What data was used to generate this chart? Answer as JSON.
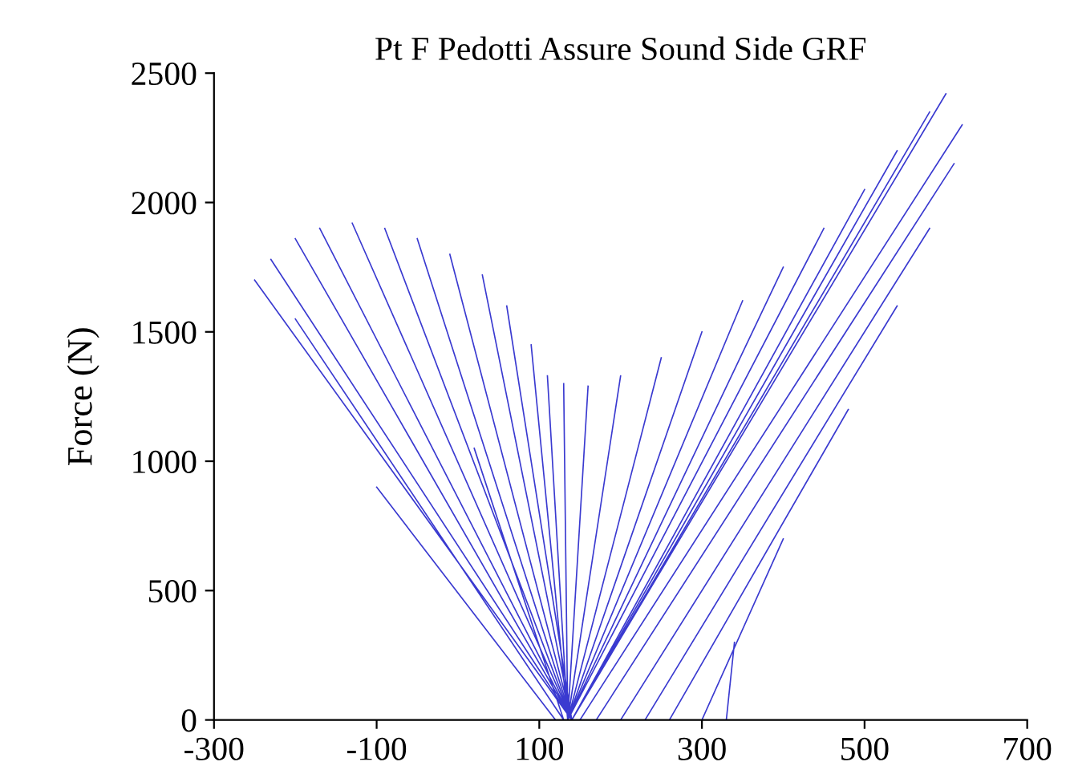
{
  "chart_data": {
    "type": "line",
    "title": "Pt F Pedotti Assure Sound Side GRF",
    "ylabel": "Force (N)",
    "xlim": [
      -300,
      700
    ],
    "ylim": [
      0,
      2500
    ],
    "xticks": [
      -300,
      -100,
      100,
      300,
      500,
      700
    ],
    "yticks": [
      0,
      500,
      1000,
      1500,
      2000,
      2500
    ],
    "grid": false,
    "legend": false,
    "marker": "none",
    "line_style": "solid",
    "series": [
      {
        "color": "#3a3ad0",
        "x": [
          140,
          -250,
          null,
          140,
          -230,
          null,
          140,
          -200,
          null,
          140,
          -170,
          null,
          140,
          -130,
          null,
          140,
          -90,
          null,
          140,
          -50,
          null,
          140,
          -10,
          null,
          140,
          30,
          null,
          140,
          60,
          null,
          135,
          90,
          null,
          135,
          110,
          null,
          135,
          130,
          null,
          135,
          160,
          null,
          135,
          200,
          null,
          135,
          250,
          null,
          135,
          300,
          null,
          135,
          350,
          null,
          135,
          400,
          null,
          135,
          450,
          null,
          140,
          500,
          null,
          140,
          540,
          null,
          140,
          580,
          null,
          140,
          600,
          null,
          150,
          620,
          null,
          170,
          610,
          null,
          200,
          580,
          null,
          230,
          540,
          null,
          260,
          480,
          null,
          300,
          400,
          null,
          330,
          340,
          null,
          130,
          -200,
          null,
          120,
          -100,
          null,
          130,
          20
        ],
        "values": [
          0,
          1700,
          null,
          0,
          1780,
          null,
          0,
          1860,
          null,
          0,
          1900,
          null,
          0,
          1920,
          null,
          0,
          1900,
          null,
          0,
          1860,
          null,
          0,
          1800,
          null,
          0,
          1720,
          null,
          0,
          1600,
          null,
          0,
          1450,
          null,
          0,
          1330,
          null,
          0,
          1300,
          null,
          0,
          1290,
          null,
          0,
          1330,
          null,
          0,
          1400,
          null,
          0,
          1500,
          null,
          0,
          1620,
          null,
          0,
          1750,
          null,
          0,
          1900,
          null,
          0,
          2050,
          null,
          0,
          2200,
          null,
          0,
          2350,
          null,
          0,
          2420,
          null,
          0,
          2300,
          null,
          0,
          2150,
          null,
          0,
          1900,
          null,
          0,
          1600,
          null,
          0,
          1200,
          null,
          0,
          700,
          null,
          0,
          300,
          null,
          0,
          1550,
          null,
          0,
          900,
          null,
          0,
          1050
        ]
      }
    ]
  }
}
